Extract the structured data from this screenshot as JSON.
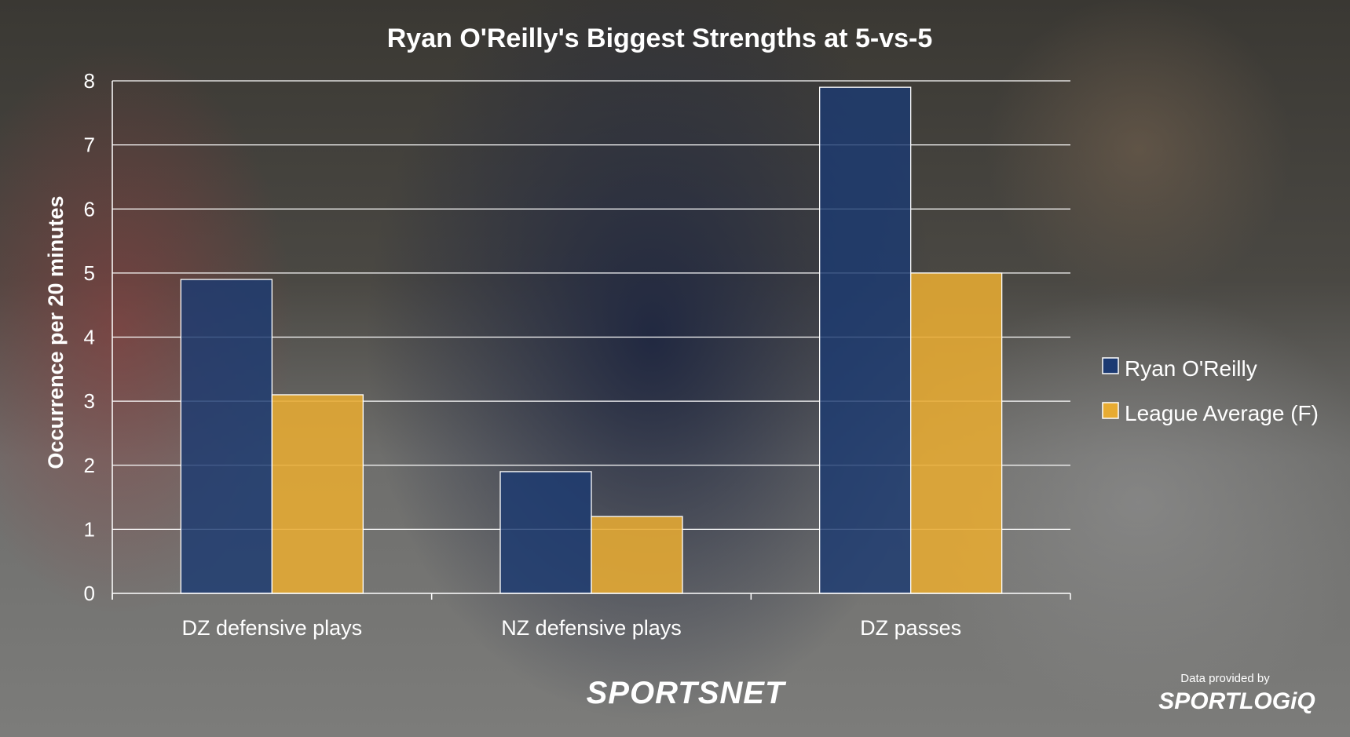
{
  "chart_data": {
    "type": "bar",
    "title": "Ryan O'Reilly's Biggest Strengths at 5-vs-5",
    "ylabel": "Occurrence per 20 minutes",
    "xlabel": "",
    "ylim": [
      0,
      8
    ],
    "yticks": [
      0,
      1,
      2,
      3,
      4,
      5,
      6,
      7,
      8
    ],
    "grid": true,
    "legend_position": "right",
    "categories": [
      "DZ defensive plays",
      "NZ defensive plays",
      "DZ passes"
    ],
    "series": [
      {
        "name": "Ryan O'Reilly",
        "color": "#1c3a72",
        "values": [
          4.9,
          1.9,
          7.9
        ]
      },
      {
        "name": "League Average (F)",
        "color": "#e7ab32",
        "values": [
          3.1,
          1.2,
          5.0
        ]
      }
    ]
  },
  "branding": {
    "network": "SPORTSNET",
    "credit": "Data provided by",
    "provider": "SPORTLOGiQ"
  }
}
